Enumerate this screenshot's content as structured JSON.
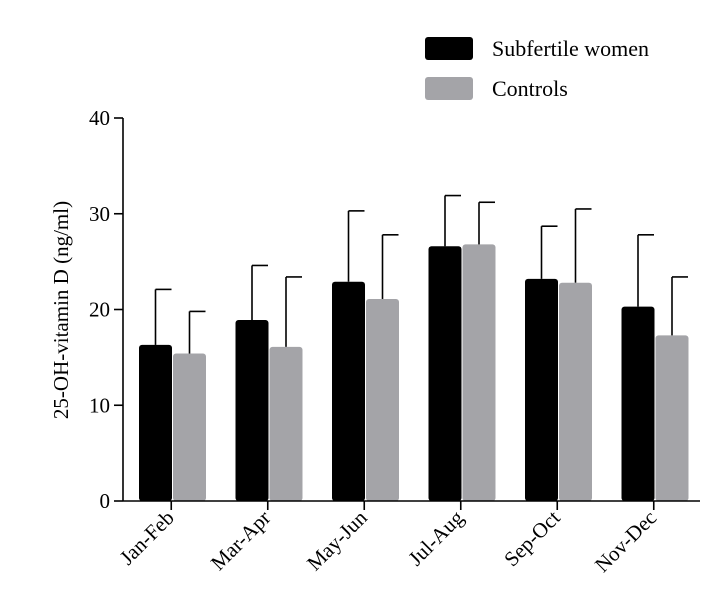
{
  "chart_data": {
    "type": "bar",
    "title": "",
    "xlabel": "",
    "ylabel": "25-OH-vitamin D (ng/ml)",
    "ylim": [
      0,
      40
    ],
    "yticks": [
      0,
      10,
      20,
      30,
      40
    ],
    "grid": false,
    "legend": "top-right",
    "error_bars": true,
    "categories": [
      "Jan-Feb",
      "Mar-Apr",
      "May-Jun",
      "Jul-Aug",
      "Sep-Oct",
      "Nov-Dec"
    ],
    "series": [
      {
        "name": "Subfertile women",
        "color": "#000000",
        "values": [
          16.3,
          18.9,
          22.9,
          26.6,
          23.2,
          20.3
        ],
        "error": [
          5.8,
          5.7,
          7.4,
          5.3,
          5.5,
          7.5
        ]
      },
      {
        "name": "Controls",
        "color": "#a4a4a8",
        "values": [
          15.4,
          16.1,
          21.1,
          26.8,
          22.8,
          17.3
        ],
        "error": [
          4.4,
          7.3,
          6.7,
          4.4,
          7.7,
          6.1
        ]
      }
    ]
  }
}
